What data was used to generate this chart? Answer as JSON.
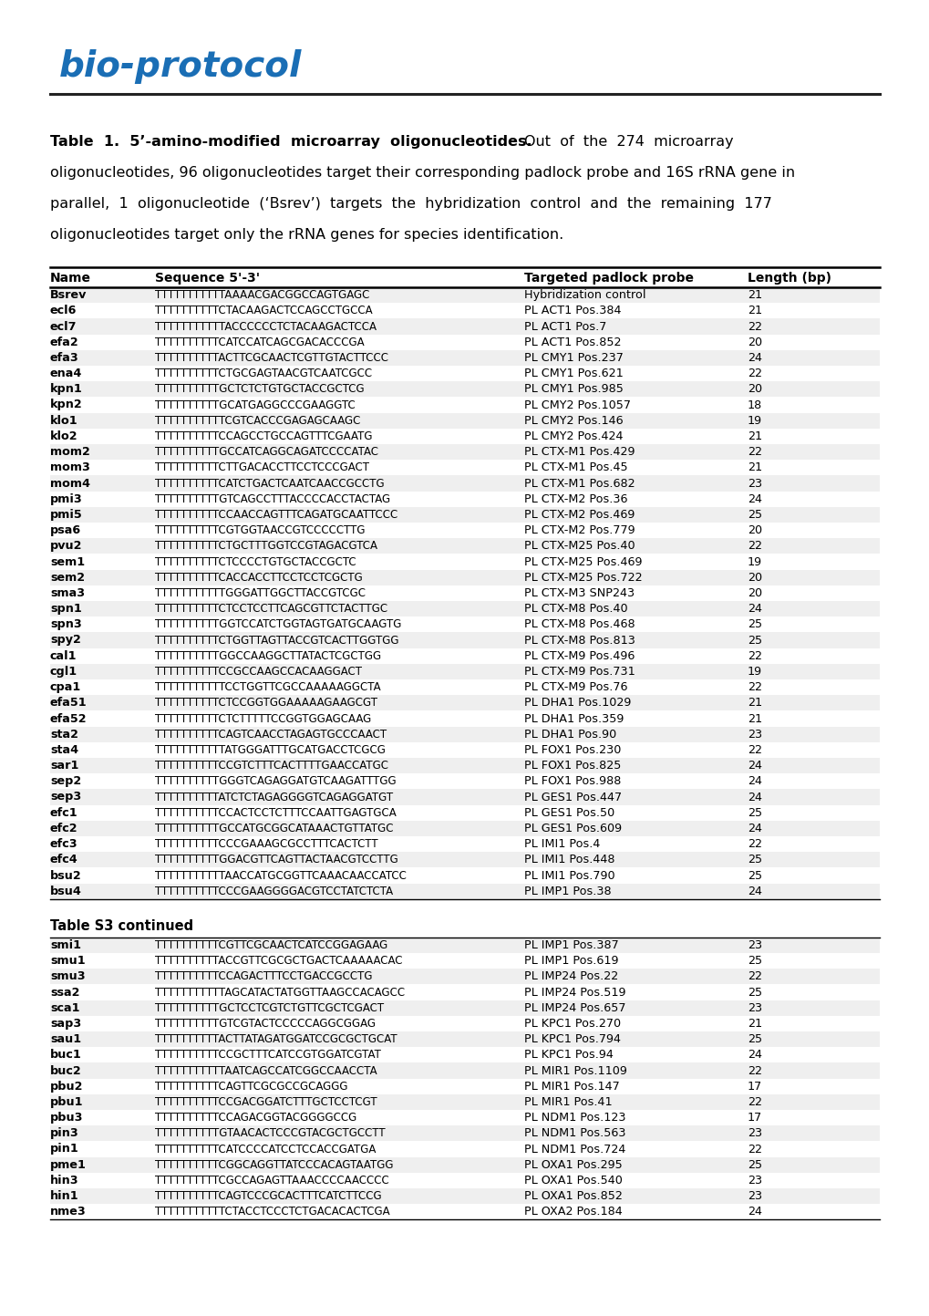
{
  "col_headers": [
    "Name",
    "Sequence 5'-3'",
    "Targeted padlock probe",
    "Length (bp)"
  ],
  "rows": [
    [
      "Bsrev",
      "TTTTTTTTTTTAAAACGACGGCCAGTGAGC",
      "Hybridization control",
      "21"
    ],
    [
      "ecl6",
      "TTTTTTTTTTCTACAAGACTCCAGCCTGCCA",
      "PL ACT1 Pos.384",
      "21"
    ],
    [
      "ecl7",
      "TTTTTTTTTTTACCCCCCTCTACAAGACTCCA",
      "PL ACT1 Pos.7",
      "22"
    ],
    [
      "efa2",
      "TTTTTTTTTTCATCCATCAGCGACACCCGA",
      "PL ACT1 Pos.852",
      "20"
    ],
    [
      "efa3",
      "TTTTTTTTTTACTTCGCAACTCGTTGTACTTCCC",
      "PL CMY1 Pos.237",
      "24"
    ],
    [
      "ena4",
      "TTTTTTTTTTCTGCGAGTAACGTCAATCGCC",
      "PL CMY1 Pos.621",
      "22"
    ],
    [
      "kpn1",
      "TTTTTTTTTTGCTCTCTGTGCTACCGCTCG",
      "PL CMY1 Pos.985",
      "20"
    ],
    [
      "kpn2",
      "TTTTTTTTTTGCATGAGGCCCGAAGGTC",
      "PL CMY2 Pos.1057",
      "18"
    ],
    [
      "klo1",
      "TTTTTTTTTTTCGTCACCCGAGAGCAAGC",
      "PL CMY2 Pos.146",
      "19"
    ],
    [
      "klo2",
      "TTTTTTTTTTCCAGCCTGCCAGTTTCGAATG",
      "PL CMY2 Pos.424",
      "21"
    ],
    [
      "mom2",
      "TTTTTTTTTTGCCATCAGGCAGATCCCCATAC",
      "PL CTX-M1 Pos.429",
      "22"
    ],
    [
      "mom3",
      "TTTTTTTTTTCTTGACACCTTCCTCCCGACT",
      "PL CTX-M1 Pos.45",
      "21"
    ],
    [
      "mom4",
      "TTTTTTTTTTCATCTGACTCAATCAACCGCCTG",
      "PL CTX-M1 Pos.682",
      "23"
    ],
    [
      "pmi3",
      "TTTTTTTTTTGTCAGCCTTTACCCCACCTACTAG",
      "PL CTX-M2 Pos.36",
      "24"
    ],
    [
      "pmi5",
      "TTTTTTTTTTCCAACCAGTTTCAGATGCAATTCCC",
      "PL CTX-M2 Pos.469",
      "25"
    ],
    [
      "psa6",
      "TTTTTTTTTTCGTGGTAACCGTCCCCCTTG",
      "PL CTX-M2 Pos.779",
      "20"
    ],
    [
      "pvu2",
      "TTTTTTTTTTCTGCTTTGGTCCGTAGACGTCA",
      "PL CTX-M25 Pos.40",
      "22"
    ],
    [
      "sem1",
      "TTTTTTTTTTCTCCCCTGTGCTACCGCTC",
      "PL CTX-M25 Pos.469",
      "19"
    ],
    [
      "sem2",
      "TTTTTTTTTTCACCACCTTCCTCCTCGCTG",
      "PL CTX-M25 Pos.722",
      "20"
    ],
    [
      "sma3",
      "TTTTTTTTTTTGGGATTGGCTTACCGTCGC",
      "PL CTX-M3 SNP243",
      "20"
    ],
    [
      "spn1",
      "TTTTTTTTTTCTCCTCCTTCAGCGTTCTACTTGC",
      "PL CTX-M8 Pos.40",
      "24"
    ],
    [
      "spn3",
      "TTTTTTTTTTGGTCCATCTGGTAGTGATGCAAGTG",
      "PL CTX-M8 Pos.468",
      "25"
    ],
    [
      "spy2",
      "TTTTTTTTTTCTGGTTAGTTACCGTCACTTGGTGG",
      "PL CTX-M8 Pos.813",
      "25"
    ],
    [
      "cal1",
      "TTTTTTTTTTGGCCAAGGCTTATACTCGCTGG",
      "PL CTX-M9 Pos.496",
      "22"
    ],
    [
      "cgl1",
      "TTTTTTTTTTCCGCCAAGCCACAAGGACT",
      "PL CTX-M9 Pos.731",
      "19"
    ],
    [
      "cpa1",
      "TTTTTTTTTTTCCTGGTTCGCCAAAAAGGCTA",
      "PL CTX-M9 Pos.76",
      "22"
    ],
    [
      "efa51",
      "TTTTTTTTTTCTCCGGTGGAAAAAGAAGCGT",
      "PL DHA1 Pos.1029",
      "21"
    ],
    [
      "efa52",
      "TTTTTTTTTTCTCTTTTTCCGGTGGAGCAAG",
      "PL DHA1 Pos.359",
      "21"
    ],
    [
      "sta2",
      "TTTTTTTTTTCAGTCAACCTAGAGTGCCCAACT",
      "PL DHA1 Pos.90",
      "23"
    ],
    [
      "sta4",
      "TTTTTTTTTTTATGGGATTTGCATGACCTCGCG",
      "PL FOX1 Pos.230",
      "22"
    ],
    [
      "sar1",
      "TTTTTTTTTTCCGTCTTTCACTTTTGAACCATGC",
      "PL FOX1 Pos.825",
      "24"
    ],
    [
      "sep2",
      "TTTTTTTTTTGGGTCAGAGGATGTCAAGATTTGG",
      "PL FOX1 Pos.988",
      "24"
    ],
    [
      "sep3",
      "TTTTTTTTTTATCTCTAGAGGGGTCAGAGGATGT",
      "PL GES1 Pos.447",
      "24"
    ],
    [
      "efc1",
      "TTTTTTTTTTCCACTCCTCTTTCCAATTGAGTGCA",
      "PL GES1 Pos.50",
      "25"
    ],
    [
      "efc2",
      "TTTTTTTTTTGCCATGCGGCATAAACTGTTATGC",
      "PL GES1 Pos.609",
      "24"
    ],
    [
      "efc3",
      "TTTTTTTTTTCCCGAAAGCGCCTTTCACTCTT",
      "PL IMI1 Pos.4",
      "22"
    ],
    [
      "efc4",
      "TTTTTTTTTTGGACGTTCAGTTACTAACGTCCTTG",
      "PL IMI1 Pos.448",
      "25"
    ],
    [
      "bsu2",
      "TTTTTTTTTTTAACCATGCGGTTCAAACAACCATCC",
      "PL IMI1 Pos.790",
      "25"
    ],
    [
      "bsu4",
      "TTTTTTTTTTCCCGAAGGGGACGTCCTATCTCTA",
      "PL IMP1 Pos.38",
      "24"
    ]
  ],
  "continued_label": "Table S3 continued",
  "rows2": [
    [
      "smi1",
      "TTTTTTTTTTCGTTCGCAACTCATCCGGAGAAG",
      "PL IMP1 Pos.387",
      "23"
    ],
    [
      "smu1",
      "TTTTTTTTTTACCGTTCGCGCTGACTCAAAAACAC",
      "PL IMP1 Pos.619",
      "25"
    ],
    [
      "smu3",
      "TTTTTTTTTTCCAGACTTTCCTGACCGCCTG",
      "PL IMP24 Pos.22",
      "22"
    ],
    [
      "ssa2",
      "TTTTTTTTTTTAGCATACTATGGTTAAGCCACAGCC",
      "PL IMP24 Pos.519",
      "25"
    ],
    [
      "sca1",
      "TTTTTTTTTTGCTCCTCGTCTGTTCGCTCGACT",
      "PL IMP24 Pos.657",
      "23"
    ],
    [
      "sap3",
      "TTTTTTTTTTGTCGTACTCCCCCAGGCGGAG",
      "PL KPC1 Pos.270",
      "21"
    ],
    [
      "sau1",
      "TTTTTTTTTTACTTATAGATGGATCCGCGCTGCAT",
      "PL KPC1 Pos.794",
      "25"
    ],
    [
      "buc1",
      "TTTTTTTTTTCCGCTTTCATCCGTGGATCGTAT",
      "PL KPC1 Pos.94",
      "24"
    ],
    [
      "buc2",
      "TTTTTTTTTTTAATCAGCCATCGGCCAACCTA",
      "PL MIR1 Pos.1109",
      "22"
    ],
    [
      "pbu2",
      "TTTTTTTTTTCAGTTCGCGCCGCAGGG",
      "PL MIR1 Pos.147",
      "17"
    ],
    [
      "pbu1",
      "TTTTTTTTTTCCGACGGATCTTTGCTCCTCGT",
      "PL MIR1 Pos.41",
      "22"
    ],
    [
      "pbu3",
      "TTTTTTTTTTCCAGACGGTACGGGGCCG",
      "PL NDM1 Pos.123",
      "17"
    ],
    [
      "pin3",
      "TTTTTTTTTTGTAACACTCCCGTACGCTGCCTT",
      "PL NDM1 Pos.563",
      "23"
    ],
    [
      "pin1",
      "TTTTTTTTTTCATCCCCATCCTCCACCGATGA",
      "PL NDM1 Pos.724",
      "22"
    ],
    [
      "pme1",
      "TTTTTTTTTTCGGCAGGTTATCCCACAGTAATGG",
      "PL OXA1 Pos.295",
      "25"
    ],
    [
      "hin3",
      "TTTTTTTTTTCGCCAGAGTTAAACCCCAACCCC",
      "PL OXA1 Pos.540",
      "23"
    ],
    [
      "hin1",
      "TTTTTTTTTTCAGTCCCGCACTTTCATCTTCCG",
      "PL OXA1 Pos.852",
      "23"
    ],
    [
      "nme3",
      "TTTTTTTTTTTCTACCTCCCTCTGACACACTCGA",
      "PL OXA2 Pos.184",
      "24"
    ]
  ],
  "logo_color": "#1a6eb5",
  "bg_color": "#ffffff",
  "row_shade": "#efefef",
  "header_shade": "#ffffff"
}
